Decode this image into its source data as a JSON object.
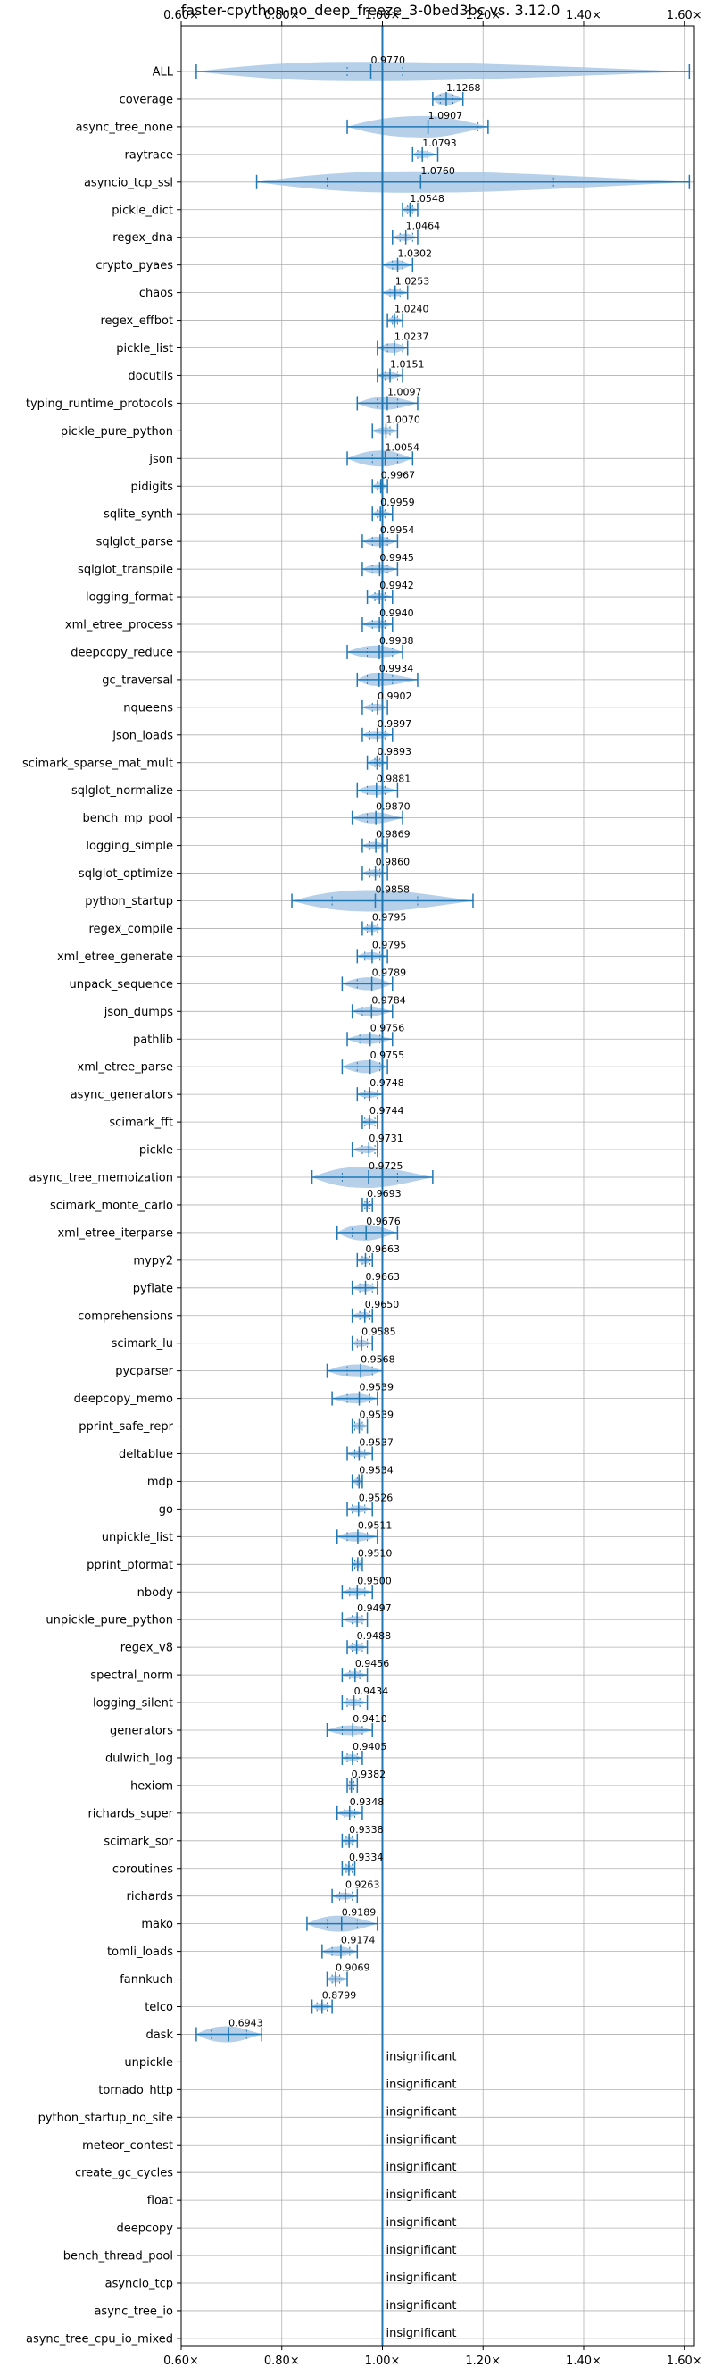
{
  "chart_data": {
    "type": "violin",
    "title": "faster-cpython-no_deep_freeze_3-0bed3bc vs. 3.12.0",
    "xlim": [
      0.6,
      1.62
    ],
    "xticks": [
      0.6,
      0.8,
      1.0,
      1.2,
      1.4,
      1.6
    ],
    "xtick_labels": [
      "0.60×",
      "0.80×",
      "1.00×",
      "1.20×",
      "1.40×",
      "1.60×"
    ],
    "reference_line": 1.0,
    "grid": true,
    "color": "#1f77b4",
    "fill_color": "#a9c8e6",
    "insignificant_label": "insignificant",
    "benchmarks": [
      {
        "name": "ALL",
        "mean": 0.977,
        "label": "0.9770",
        "min": 0.63,
        "max": 1.61,
        "q1": 0.93,
        "q3": 1.04,
        "w": 0.06
      },
      {
        "name": "coverage",
        "mean": 1.1268,
        "label": "1.1268",
        "min": 1.1,
        "max": 1.16,
        "q1": 1.115,
        "q3": 1.14,
        "w": 0.04
      },
      {
        "name": "async_tree_none",
        "mean": 1.0907,
        "label": "1.0907",
        "min": 0.93,
        "max": 1.21,
        "q1": 1.0,
        "q3": 1.19,
        "w": 0.14
      },
      {
        "name": "raytrace",
        "mean": 1.0793,
        "label": "1.0793",
        "min": 1.06,
        "max": 1.11,
        "q1": 1.07,
        "q3": 1.09,
        "w": 0.02
      },
      {
        "name": "asyncio_tcp_ssl",
        "mean": 1.076,
        "label": "1.0760",
        "min": 0.75,
        "max": 1.61,
        "q1": 0.89,
        "q3": 1.34,
        "w": 0.4
      },
      {
        "name": "pickle_dict",
        "mean": 1.0548,
        "label": "1.0548",
        "min": 1.04,
        "max": 1.07,
        "q1": 1.05,
        "q3": 1.06,
        "w": 0.02
      },
      {
        "name": "regex_dna",
        "mean": 1.0464,
        "label": "1.0464",
        "min": 1.02,
        "max": 1.07,
        "q1": 1.035,
        "q3": 1.06,
        "w": 0.02
      },
      {
        "name": "crypto_pyaes",
        "mean": 1.0302,
        "label": "1.0302",
        "min": 1.0,
        "max": 1.06,
        "q1": 1.02,
        "q3": 1.04,
        "w": 0.03
      },
      {
        "name": "chaos",
        "mean": 1.0253,
        "label": "1.0253",
        "min": 1.0,
        "max": 1.05,
        "q1": 1.015,
        "q3": 1.035,
        "w": 0.02
      },
      {
        "name": "regex_effbot",
        "mean": 1.024,
        "label": "1.0240",
        "min": 1.01,
        "max": 1.04,
        "q1": 1.02,
        "q3": 1.03,
        "w": 0.015
      },
      {
        "name": "pickle_list",
        "mean": 1.0237,
        "label": "1.0237",
        "min": 0.99,
        "max": 1.05,
        "q1": 1.01,
        "q3": 1.04,
        "w": 0.03
      },
      {
        "name": "docutils",
        "mean": 1.0151,
        "label": "1.0151",
        "min": 0.99,
        "max": 1.04,
        "q1": 1.005,
        "q3": 1.03,
        "w": 0.02
      },
      {
        "name": "typing_runtime_protocols",
        "mean": 1.0097,
        "label": "1.0097",
        "min": 0.95,
        "max": 1.07,
        "q1": 0.99,
        "q3": 1.03,
        "w": 0.04
      },
      {
        "name": "pickle_pure_python",
        "mean": 1.007,
        "label": "1.0070",
        "min": 0.98,
        "max": 1.03,
        "q1": 1.0,
        "q3": 1.015,
        "w": 0.02
      },
      {
        "name": "json",
        "mean": 1.0054,
        "label": "1.0054",
        "min": 0.93,
        "max": 1.06,
        "q1": 0.98,
        "q3": 1.03,
        "w": 0.05
      },
      {
        "name": "pidigits",
        "mean": 0.9967,
        "label": "0.9967",
        "min": 0.98,
        "max": 1.01,
        "q1": 0.99,
        "q3": 1.0,
        "w": 0.015
      },
      {
        "name": "sqlite_synth",
        "mean": 0.9959,
        "label": "0.9959",
        "min": 0.98,
        "max": 1.02,
        "q1": 0.99,
        "q3": 1.005,
        "w": 0.02
      },
      {
        "name": "sqlglot_parse",
        "mean": 0.9954,
        "label": "0.9954",
        "min": 0.96,
        "max": 1.03,
        "q1": 0.98,
        "q3": 1.01,
        "w": 0.03
      },
      {
        "name": "sqlglot_transpile",
        "mean": 0.9945,
        "label": "0.9945",
        "min": 0.96,
        "max": 1.03,
        "q1": 0.98,
        "q3": 1.01,
        "w": 0.03
      },
      {
        "name": "logging_format",
        "mean": 0.9942,
        "label": "0.9942",
        "min": 0.97,
        "max": 1.02,
        "q1": 0.985,
        "q3": 1.005,
        "w": 0.02
      },
      {
        "name": "xml_etree_process",
        "mean": 0.994,
        "label": "0.9940",
        "min": 0.96,
        "max": 1.02,
        "q1": 0.98,
        "q3": 1.005,
        "w": 0.025
      },
      {
        "name": "deepcopy_reduce",
        "mean": 0.9938,
        "label": "0.9938",
        "min": 0.93,
        "max": 1.04,
        "q1": 0.97,
        "q3": 1.02,
        "w": 0.04
      },
      {
        "name": "gc_traversal",
        "mean": 0.9934,
        "label": "0.9934",
        "min": 0.95,
        "max": 1.07,
        "q1": 0.97,
        "q3": 1.02,
        "w": 0.04
      },
      {
        "name": "nqueens",
        "mean": 0.9902,
        "label": "0.9902",
        "min": 0.96,
        "max": 1.01,
        "q1": 0.98,
        "q3": 1.0,
        "w": 0.02
      },
      {
        "name": "json_loads",
        "mean": 0.9897,
        "label": "0.9897",
        "min": 0.96,
        "max": 1.02,
        "q1": 0.975,
        "q3": 1.005,
        "w": 0.025
      },
      {
        "name": "scimark_sparse_mat_mult",
        "mean": 0.9893,
        "label": "0.9893",
        "min": 0.97,
        "max": 1.01,
        "q1": 0.985,
        "q3": 0.995,
        "w": 0.015
      },
      {
        "name": "sqlglot_normalize",
        "mean": 0.9881,
        "label": "0.9881",
        "min": 0.95,
        "max": 1.03,
        "q1": 0.97,
        "q3": 1.005,
        "w": 0.03
      },
      {
        "name": "bench_mp_pool",
        "mean": 0.987,
        "label": "0.9870",
        "min": 0.94,
        "max": 1.04,
        "q1": 0.97,
        "q3": 1.0,
        "w": 0.035
      },
      {
        "name": "logging_simple",
        "mean": 0.9869,
        "label": "0.9869",
        "min": 0.96,
        "max": 1.01,
        "q1": 0.975,
        "q3": 1.0,
        "w": 0.02
      },
      {
        "name": "sqlglot_optimize",
        "mean": 0.986,
        "label": "0.9860",
        "min": 0.96,
        "max": 1.01,
        "q1": 0.975,
        "q3": 0.995,
        "w": 0.02
      },
      {
        "name": "python_startup",
        "mean": 0.9858,
        "label": "0.9858",
        "min": 0.82,
        "max": 1.18,
        "q1": 0.9,
        "q3": 1.07,
        "w": 0.15
      },
      {
        "name": "regex_compile",
        "mean": 0.9795,
        "label": "0.9795",
        "min": 0.96,
        "max": 1.0,
        "q1": 0.97,
        "q3": 0.99,
        "w": 0.02
      },
      {
        "name": "xml_etree_generate",
        "mean": 0.9795,
        "label": "0.9795",
        "min": 0.95,
        "max": 1.01,
        "q1": 0.965,
        "q3": 0.995,
        "w": 0.025
      },
      {
        "name": "unpack_sequence",
        "mean": 0.9789,
        "label": "0.9789",
        "min": 0.92,
        "max": 1.02,
        "q1": 0.95,
        "q3": 1.0,
        "w": 0.04
      },
      {
        "name": "json_dumps",
        "mean": 0.9784,
        "label": "0.9784",
        "min": 0.94,
        "max": 1.02,
        "q1": 0.96,
        "q3": 1.0,
        "w": 0.03
      },
      {
        "name": "pathlib",
        "mean": 0.9756,
        "label": "0.9756",
        "min": 0.93,
        "max": 1.02,
        "q1": 0.955,
        "q3": 0.995,
        "w": 0.03
      },
      {
        "name": "xml_etree_parse",
        "mean": 0.9755,
        "label": "0.9755",
        "min": 0.92,
        "max": 1.01,
        "q1": 0.95,
        "q3": 0.995,
        "w": 0.04
      },
      {
        "name": "async_generators",
        "mean": 0.9748,
        "label": "0.9748",
        "min": 0.95,
        "max": 1.0,
        "q1": 0.965,
        "q3": 0.99,
        "w": 0.02
      },
      {
        "name": "scimark_fft",
        "mean": 0.9744,
        "label": "0.9744",
        "min": 0.96,
        "max": 0.99,
        "q1": 0.965,
        "q3": 0.985,
        "w": 0.015
      },
      {
        "name": "pickle",
        "mean": 0.9731,
        "label": "0.9731",
        "min": 0.94,
        "max": 0.99,
        "q1": 0.96,
        "q3": 0.985,
        "w": 0.02
      },
      {
        "name": "async_tree_memoization",
        "mean": 0.9725,
        "label": "0.9725",
        "min": 0.86,
        "max": 1.1,
        "q1": 0.92,
        "q3": 1.03,
        "w": 0.1
      },
      {
        "name": "scimark_monte_carlo",
        "mean": 0.9693,
        "label": "0.9693",
        "min": 0.96,
        "max": 0.98,
        "q1": 0.965,
        "q3": 0.975,
        "w": 0.01
      },
      {
        "name": "xml_etree_iterparse",
        "mean": 0.9676,
        "label": "0.9676",
        "min": 0.91,
        "max": 1.03,
        "q1": 0.94,
        "q3": 1.0,
        "w": 0.05
      },
      {
        "name": "mypy2",
        "mean": 0.9663,
        "label": "0.9663",
        "min": 0.95,
        "max": 0.98,
        "q1": 0.96,
        "q3": 0.975,
        "w": 0.015
      },
      {
        "name": "pyflate",
        "mean": 0.9663,
        "label": "0.9663",
        "min": 0.94,
        "max": 0.99,
        "q1": 0.955,
        "q3": 0.98,
        "w": 0.02
      },
      {
        "name": "comprehensions",
        "mean": 0.965,
        "label": "0.9650",
        "min": 0.94,
        "max": 0.98,
        "q1": 0.955,
        "q3": 0.975,
        "w": 0.02
      },
      {
        "name": "scimark_lu",
        "mean": 0.9585,
        "label": "0.9585",
        "min": 0.94,
        "max": 0.98,
        "q1": 0.95,
        "q3": 0.97,
        "w": 0.02
      },
      {
        "name": "pycparser",
        "mean": 0.9568,
        "label": "0.9568",
        "min": 0.89,
        "max": 1.0,
        "q1": 0.93,
        "q3": 0.98,
        "w": 0.04
      },
      {
        "name": "deepcopy_memo",
        "mean": 0.9539,
        "label": "0.9539",
        "min": 0.9,
        "max": 0.99,
        "q1": 0.93,
        "q3": 0.975,
        "w": 0.03
      },
      {
        "name": "pprint_safe_repr",
        "mean": 0.9539,
        "label": "0.9539",
        "min": 0.94,
        "max": 0.97,
        "q1": 0.945,
        "q3": 0.96,
        "w": 0.015
      },
      {
        "name": "deltablue",
        "mean": 0.9537,
        "label": "0.9537",
        "min": 0.93,
        "max": 0.98,
        "q1": 0.945,
        "q3": 0.965,
        "w": 0.02
      },
      {
        "name": "mdp",
        "mean": 0.9534,
        "label": "0.9534",
        "min": 0.94,
        "max": 0.96,
        "q1": 0.95,
        "q3": 0.958,
        "w": 0.01
      },
      {
        "name": "go",
        "mean": 0.9526,
        "label": "0.9526",
        "min": 0.93,
        "max": 0.98,
        "q1": 0.94,
        "q3": 0.965,
        "w": 0.02
      },
      {
        "name": "unpickle_list",
        "mean": 0.9511,
        "label": "0.9511",
        "min": 0.91,
        "max": 0.99,
        "q1": 0.93,
        "q3": 0.97,
        "w": 0.03
      },
      {
        "name": "pprint_pformat",
        "mean": 0.951,
        "label": "0.9510",
        "min": 0.94,
        "max": 0.96,
        "q1": 0.945,
        "q3": 0.957,
        "w": 0.01
      },
      {
        "name": "nbody",
        "mean": 0.95,
        "label": "0.9500",
        "min": 0.92,
        "max": 0.98,
        "q1": 0.935,
        "q3": 0.965,
        "w": 0.025
      },
      {
        "name": "unpickle_pure_python",
        "mean": 0.9497,
        "label": "0.9497",
        "min": 0.92,
        "max": 0.97,
        "q1": 0.94,
        "q3": 0.96,
        "w": 0.02
      },
      {
        "name": "regex_v8",
        "mean": 0.9488,
        "label": "0.9488",
        "min": 0.93,
        "max": 0.97,
        "q1": 0.94,
        "q3": 0.96,
        "w": 0.015
      },
      {
        "name": "spectral_norm",
        "mean": 0.9456,
        "label": "0.9456",
        "min": 0.92,
        "max": 0.97,
        "q1": 0.935,
        "q3": 0.955,
        "w": 0.02
      },
      {
        "name": "logging_silent",
        "mean": 0.9434,
        "label": "0.9434",
        "min": 0.92,
        "max": 0.97,
        "q1": 0.93,
        "q3": 0.955,
        "w": 0.02
      },
      {
        "name": "generators",
        "mean": 0.941,
        "label": "0.9410",
        "min": 0.89,
        "max": 0.98,
        "q1": 0.92,
        "q3": 0.96,
        "w": 0.03
      },
      {
        "name": "dulwich_log",
        "mean": 0.9405,
        "label": "0.9405",
        "min": 0.92,
        "max": 0.96,
        "q1": 0.93,
        "q3": 0.95,
        "w": 0.02
      },
      {
        "name": "hexiom",
        "mean": 0.9382,
        "label": "0.9382",
        "min": 0.93,
        "max": 0.95,
        "q1": 0.935,
        "q3": 0.943,
        "w": 0.01
      },
      {
        "name": "richards_super",
        "mean": 0.9348,
        "label": "0.9348",
        "min": 0.91,
        "max": 0.96,
        "q1": 0.925,
        "q3": 0.945,
        "w": 0.02
      },
      {
        "name": "scimark_sor",
        "mean": 0.9338,
        "label": "0.9338",
        "min": 0.92,
        "max": 0.95,
        "q1": 0.928,
        "q3": 0.94,
        "w": 0.012
      },
      {
        "name": "coroutines",
        "mean": 0.9334,
        "label": "0.9334",
        "min": 0.92,
        "max": 0.945,
        "q1": 0.928,
        "q3": 0.94,
        "w": 0.01
      },
      {
        "name": "richards",
        "mean": 0.9263,
        "label": "0.9263",
        "min": 0.9,
        "max": 0.95,
        "q1": 0.915,
        "q3": 0.94,
        "w": 0.02
      },
      {
        "name": "mako",
        "mean": 0.9189,
        "label": "0.9189",
        "min": 0.85,
        "max": 0.99,
        "q1": 0.89,
        "q3": 0.95,
        "w": 0.05
      },
      {
        "name": "tomli_loads",
        "mean": 0.9174,
        "label": "0.9174",
        "min": 0.88,
        "max": 0.95,
        "q1": 0.9,
        "q3": 0.935,
        "w": 0.03
      },
      {
        "name": "fannkuch",
        "mean": 0.9069,
        "label": "0.9069",
        "min": 0.89,
        "max": 0.93,
        "q1": 0.9,
        "q3": 0.915,
        "w": 0.015
      },
      {
        "name": "telco",
        "mean": 0.8799,
        "label": "0.8799",
        "min": 0.86,
        "max": 0.9,
        "q1": 0.87,
        "q3": 0.89,
        "w": 0.015
      },
      {
        "name": "dask",
        "mean": 0.6943,
        "label": "0.6943",
        "min": 0.63,
        "max": 0.76,
        "q1": 0.66,
        "q3": 0.73,
        "w": 0.05
      },
      {
        "name": "unpickle",
        "insignificant": true
      },
      {
        "name": "tornado_http",
        "insignificant": true
      },
      {
        "name": "python_startup_no_site",
        "insignificant": true
      },
      {
        "name": "meteor_contest",
        "insignificant": true
      },
      {
        "name": "create_gc_cycles",
        "insignificant": true
      },
      {
        "name": "float",
        "insignificant": true
      },
      {
        "name": "deepcopy",
        "insignificant": true
      },
      {
        "name": "bench_thread_pool",
        "insignificant": true
      },
      {
        "name": "asyncio_tcp",
        "insignificant": true
      },
      {
        "name": "async_tree_io",
        "insignificant": true
      },
      {
        "name": "async_tree_cpu_io_mixed",
        "insignificant": true
      }
    ]
  }
}
